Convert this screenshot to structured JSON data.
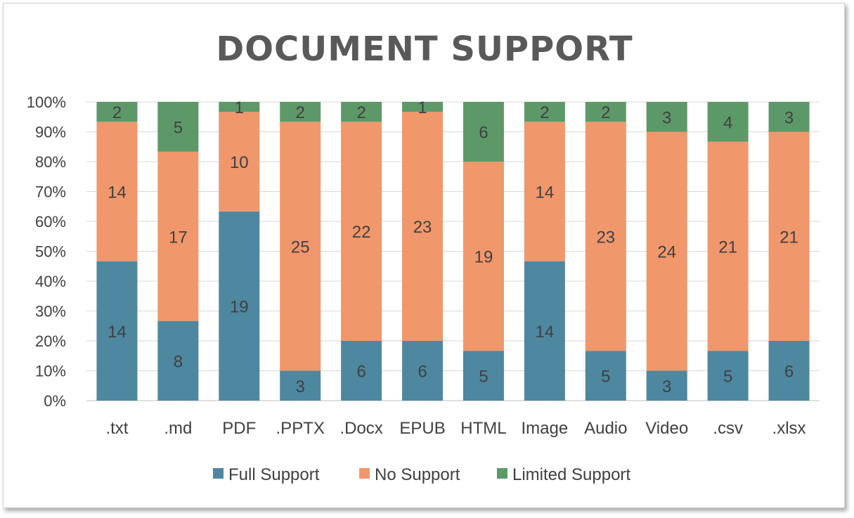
{
  "chart_data": {
    "type": "bar",
    "stacked": "percent",
    "title": "DOCUMENT SUPPORT",
    "categories": [
      ".txt",
      ".md",
      "PDF",
      ".PPTX",
      ".Docx",
      "EPUB",
      "HTML",
      "Image",
      "Audio",
      "Video",
      ".csv",
      ".xlsx"
    ],
    "series": [
      {
        "name": "Full Support",
        "color": "#4e87a0",
        "values": [
          14,
          8,
          19,
          3,
          6,
          6,
          5,
          14,
          5,
          3,
          5,
          6
        ]
      },
      {
        "name": "No Support",
        "color": "#f1976c",
        "values": [
          14,
          17,
          10,
          25,
          22,
          23,
          19,
          14,
          23,
          24,
          21,
          21
        ]
      },
      {
        "name": "Limited Support",
        "color": "#5d9968",
        "values": [
          2,
          5,
          1,
          2,
          2,
          1,
          6,
          2,
          2,
          3,
          4,
          3
        ]
      }
    ],
    "y_ticks": [
      "0%",
      "10%",
      "20%",
      "30%",
      "40%",
      "50%",
      "60%",
      "70%",
      "80%",
      "90%",
      "100%"
    ],
    "ylim": [
      0,
      100
    ],
    "grid": true,
    "legend_position": "bottom"
  }
}
